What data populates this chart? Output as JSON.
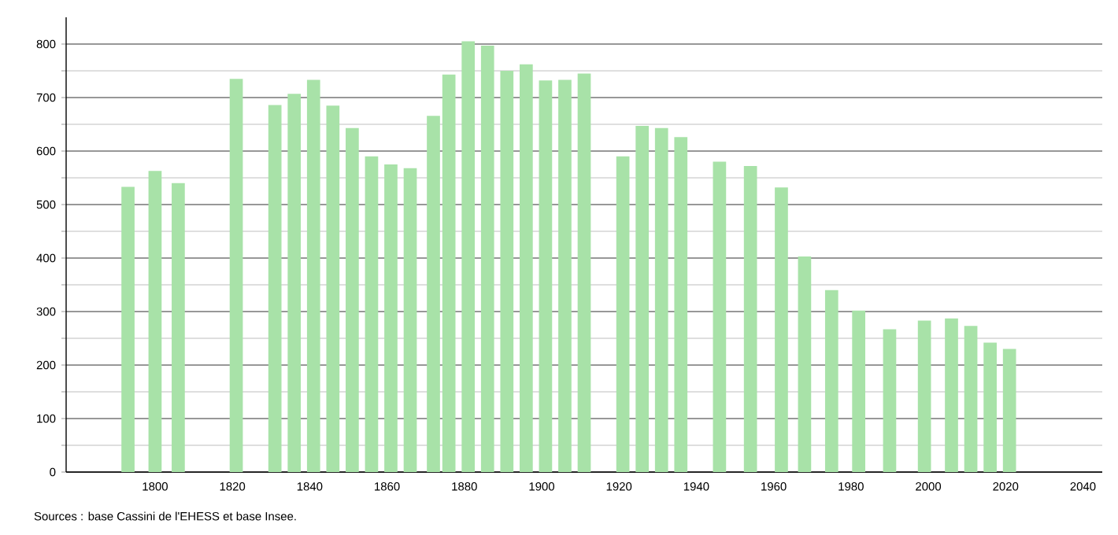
{
  "chart_data": {
    "type": "bar",
    "color": "#a8e2a8",
    "x": [
      1793,
      1800,
      1806,
      1821,
      1831,
      1836,
      1841,
      1846,
      1851,
      1856,
      1861,
      1866,
      1872,
      1876,
      1881,
      1886,
      1891,
      1896,
      1901,
      1906,
      1911,
      1921,
      1926,
      1931,
      1936,
      1946,
      1954,
      1962,
      1968,
      1975,
      1982,
      1990,
      1999,
      2006,
      2011,
      2016,
      2021
    ],
    "values": [
      533,
      563,
      540,
      735,
      686,
      707,
      733,
      685,
      643,
      590,
      575,
      568,
      666,
      743,
      805,
      797,
      750,
      762,
      732,
      733,
      745,
      590,
      647,
      643,
      626,
      580,
      572,
      532,
      403,
      340,
      302,
      267,
      283,
      287,
      273,
      242,
      230
    ],
    "xlim": [
      1777,
      2045
    ],
    "ylim": [
      0,
      850
    ],
    "xticks": [
      1800,
      1820,
      1840,
      1860,
      1880,
      1900,
      1920,
      1940,
      1960,
      1980,
      2000,
      2020,
      2040
    ],
    "yticks": [
      0,
      100,
      200,
      300,
      400,
      500,
      600,
      700,
      800
    ],
    "grid": "y",
    "annotations": [
      "Sources : base Cassini de l'EHESS et base Insee."
    ]
  }
}
